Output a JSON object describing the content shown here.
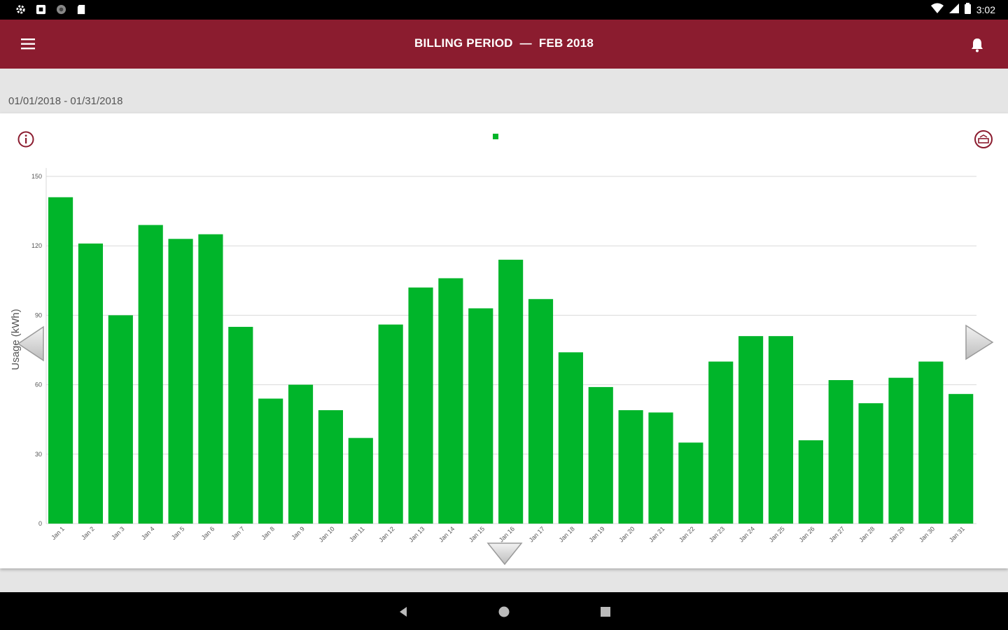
{
  "status_bar": {
    "time": "3:02",
    "left_icons": [
      "settings-icon",
      "notification-box-icon",
      "sync-icon",
      "sd-card-icon"
    ],
    "right_icons": [
      "wifi-icon",
      "signal-icon",
      "battery-icon"
    ]
  },
  "app_bar": {
    "title_prefix": "BILLING PERIOD",
    "title_separator": "—",
    "title_period": "FEB 2018"
  },
  "period": {
    "date_range": "01/01/2018 - 01/31/2018"
  },
  "colors": {
    "brand": "#8b1c2f",
    "bar": "#00b52a",
    "grid": "#d9d9d9"
  },
  "chart_data": {
    "type": "bar",
    "title": "",
    "xlabel": "",
    "ylabel": "Usage (kWh)",
    "ylim": [
      0,
      150
    ],
    "y_ticks": [
      0,
      30,
      60,
      90,
      120,
      150
    ],
    "y_tick_labels": [
      "0",
      "30",
      "60",
      "90",
      "120",
      "150"
    ],
    "grid": true,
    "legend": "top-center",
    "categories": [
      "Jan 1",
      "Jan 2",
      "Jan 3",
      "Jan 4",
      "Jan 5",
      "Jan 6",
      "Jan 7",
      "Jan 8",
      "Jan 9",
      "Jan 10",
      "Jan 11",
      "Jan 12",
      "Jan 13",
      "Jan 14",
      "Jan 15",
      "Jan 16",
      "Jan 17",
      "Jan 18",
      "Jan 19",
      "Jan 20",
      "Jan 21",
      "Jan 22",
      "Jan 23",
      "Jan 24",
      "Jan 25",
      "Jan 26",
      "Jan 27",
      "Jan 28",
      "Jan 29",
      "Jan 30",
      "Jan 31"
    ],
    "series": [
      {
        "name": "",
        "values": [
          141,
          121,
          90,
          129,
          123,
          125,
          85,
          54,
          60,
          49,
          37,
          86,
          102,
          106,
          93,
          114,
          97,
          74,
          59,
          49,
          48,
          35,
          70,
          81,
          81,
          36,
          62,
          52,
          63,
          70,
          56
        ]
      }
    ]
  }
}
